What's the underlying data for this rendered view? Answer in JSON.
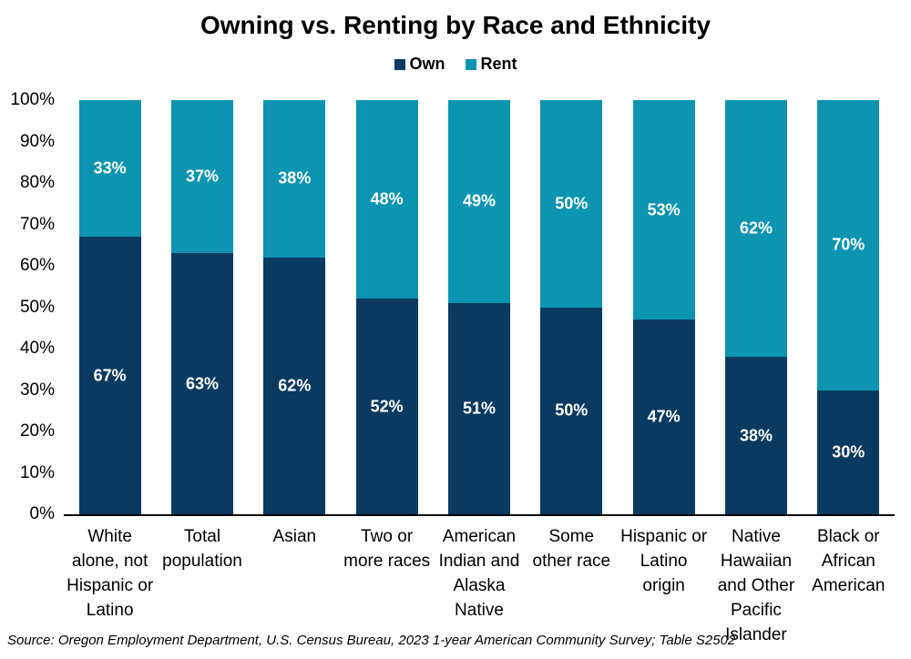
{
  "title": "Owning vs. Renting by Race and Ethnicity",
  "legend": {
    "items": [
      {
        "label": "Own",
        "color": "#0A3A60"
      },
      {
        "label": "Rent",
        "color": "#0D94B1"
      }
    ]
  },
  "source_note": "Source: Oregon Employment Department, U.S. Census Bureau, 2023 1-year American Community Survey; Table S2502",
  "chart_data": {
    "type": "bar",
    "stacked": true,
    "orientation": "vertical",
    "title": "Owning vs. Renting by Race and Ethnicity",
    "xlabel": "",
    "ylabel": "",
    "ylim": [
      0,
      100
    ],
    "grid": false,
    "legend_position": "top",
    "value_suffix": "%",
    "value_label_color": "#FFFFFF",
    "axis_line_color": "#000000",
    "y_ticks": [
      "0%",
      "10%",
      "20%",
      "30%",
      "40%",
      "50%",
      "60%",
      "70%",
      "80%",
      "90%",
      "100%"
    ],
    "categories": [
      "White alone, not Hispanic or Latino",
      "Total population",
      "Asian",
      "Two or more races",
      "American Indian and Alaska Native",
      "Some other race",
      "Hispanic or Latino origin",
      "Native Hawaiian and Other Pacific Islander",
      "Black or African American"
    ],
    "category_tick_lines": [
      [
        "White",
        "alone, not",
        "Hispanic or",
        "Latino"
      ],
      [
        "Total",
        "population"
      ],
      [
        "Asian"
      ],
      [
        "Two or",
        "more races"
      ],
      [
        "American",
        "Indian and",
        "Alaska",
        "Native"
      ],
      [
        "Some",
        "other race"
      ],
      [
        "Hispanic or",
        "Latino",
        "origin"
      ],
      [
        "Native",
        "Hawaiian",
        "and Other",
        "Pacific",
        "Islander"
      ],
      [
        "Black or",
        "African",
        "American"
      ]
    ],
    "series": [
      {
        "name": "Own",
        "color": "#0A3A60",
        "values": [
          67,
          63,
          62,
          52,
          51,
          50,
          47,
          38,
          30
        ]
      },
      {
        "name": "Rent",
        "color": "#0D94B1",
        "values": [
          33,
          37,
          38,
          48,
          49,
          50,
          53,
          62,
          70
        ]
      }
    ]
  }
}
